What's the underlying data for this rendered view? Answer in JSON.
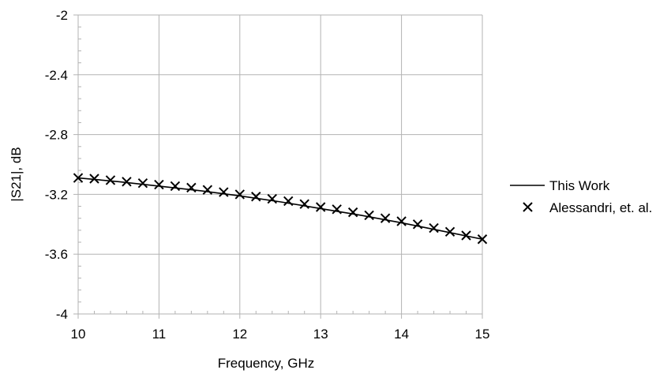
{
  "chart_data": {
    "type": "line",
    "title": "",
    "xlabel": "Frequency, GHz",
    "ylabel": "|S21|, dB",
    "xlim": [
      10,
      15
    ],
    "ylim": [
      -4,
      -2
    ],
    "xticks": [
      "10",
      "11",
      "12",
      "13",
      "14",
      "15"
    ],
    "yticks": [
      "-2",
      "-2.4",
      "-2.8",
      "-3.2",
      "-3.6",
      "-4"
    ],
    "grid": true,
    "legend_position": "right",
    "series": [
      {
        "name": "This Work",
        "style": "line",
        "color": "#000000",
        "x": [
          10.0,
          10.5,
          11.0,
          11.5,
          12.0,
          12.5,
          13.0,
          13.5,
          14.0,
          14.5,
          15.0
        ],
        "y": [
          -3.09,
          -3.115,
          -3.145,
          -3.175,
          -3.21,
          -3.25,
          -3.295,
          -3.34,
          -3.39,
          -3.445,
          -3.5
        ]
      },
      {
        "name": "Alessandri, et. al.",
        "style": "marker-x",
        "color": "#000000",
        "x": [
          10.0,
          10.2,
          10.4,
          10.6,
          10.8,
          11.0,
          11.2,
          11.4,
          11.6,
          11.8,
          12.0,
          12.2,
          12.4,
          12.6,
          12.8,
          13.0,
          13.2,
          13.4,
          13.6,
          13.8,
          14.0,
          14.2,
          14.4,
          14.6,
          14.8,
          15.0
        ],
        "y": [
          -3.09,
          -3.095,
          -3.105,
          -3.115,
          -3.125,
          -3.135,
          -3.145,
          -3.155,
          -3.17,
          -3.185,
          -3.2,
          -3.215,
          -3.23,
          -3.245,
          -3.265,
          -3.285,
          -3.3,
          -3.32,
          -3.34,
          -3.36,
          -3.38,
          -3.4,
          -3.425,
          -3.45,
          -3.475,
          -3.5
        ]
      }
    ]
  }
}
